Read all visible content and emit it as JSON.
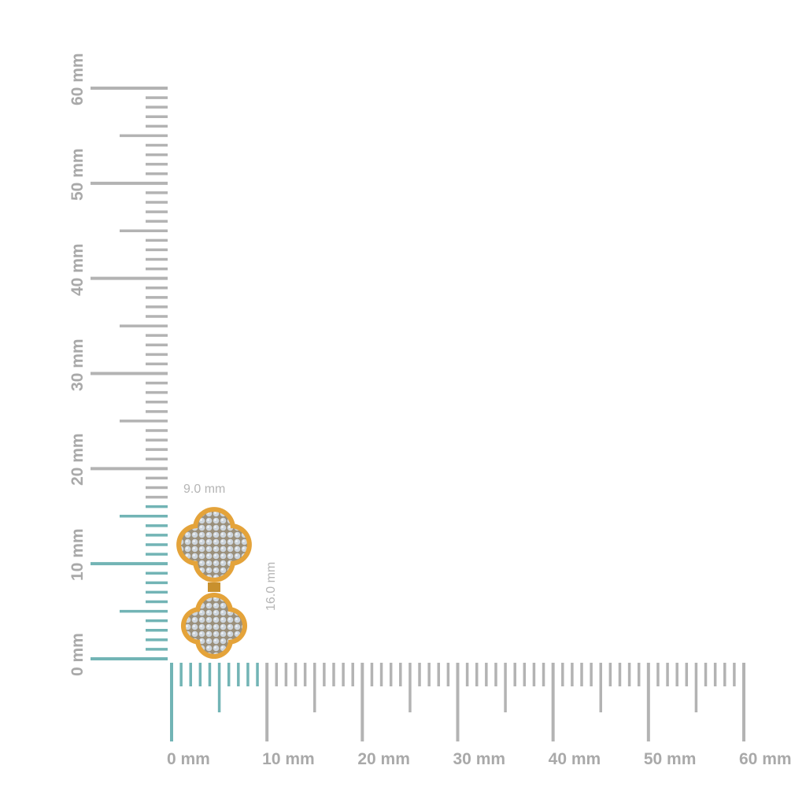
{
  "rulers": {
    "unit": "mm",
    "min": 0,
    "max": 60,
    "vertical_labels": [
      "0 mm",
      "10 mm",
      "20 mm",
      "30 mm",
      "40 mm",
      "50 mm",
      "60 mm"
    ],
    "horizontal_labels": [
      "0 mm",
      "10 mm",
      "20 mm",
      "30 mm",
      "40 mm",
      "50 mm",
      "60 mm"
    ],
    "vertical_highlight_mm": 16,
    "horizontal_highlight_mm": 9
  },
  "product": {
    "width_label": "9.0 mm",
    "height_label": "16.0 mm",
    "description_icon": "clover-earring"
  },
  "colors": {
    "tick": "#b3b3b3",
    "highlight": "#72b4b5",
    "gold": "#e4a33a",
    "stone": "#c9d2da",
    "label": "#a9a9a9"
  }
}
